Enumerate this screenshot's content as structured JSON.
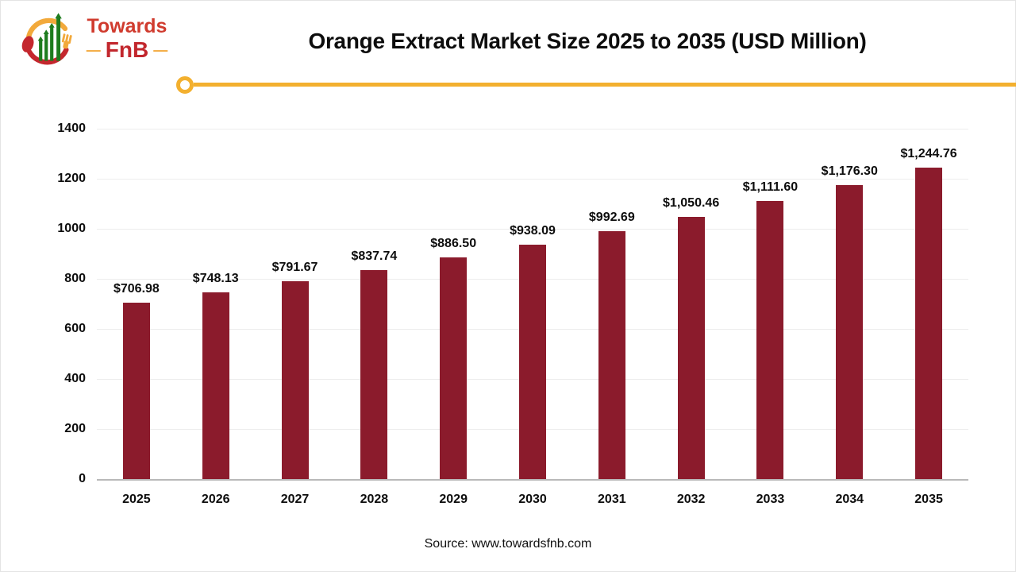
{
  "header": {
    "logo": {
      "word1": "Towards",
      "word2": "FnB",
      "dash_left": "—",
      "dash_right": "—"
    },
    "title": "Orange Extract Market Size 2025 to 2035 (USD Million)"
  },
  "chart_data": {
    "type": "bar",
    "title": "Orange Extract Market Size 2025 to 2035 (USD Million)",
    "categories": [
      "2025",
      "2026",
      "2027",
      "2028",
      "2029",
      "2030",
      "2031",
      "2032",
      "2033",
      "2034",
      "2035"
    ],
    "values": [
      706.98,
      748.13,
      791.67,
      837.74,
      886.5,
      938.09,
      992.69,
      1050.46,
      1111.6,
      1176.3,
      1244.76
    ],
    "value_labels": [
      "$706.98",
      "$748.13",
      "$791.67",
      "$837.74",
      "$886.50",
      "$938.09",
      "$992.69",
      "$1,050.46",
      "$1,111.60",
      "$1,176.30",
      "$1,244.76"
    ],
    "xlabel": "",
    "ylabel": "",
    "ylim": [
      0,
      1400
    ],
    "yticks": [
      0,
      200,
      400,
      600,
      800,
      1000,
      1200,
      1400
    ],
    "legend": "none",
    "grid": "horizontal",
    "bar_color": "#8b1b2c",
    "accent_color": "#f3b02f"
  },
  "footer": {
    "source": "Source: www.towardsfnb.com"
  }
}
